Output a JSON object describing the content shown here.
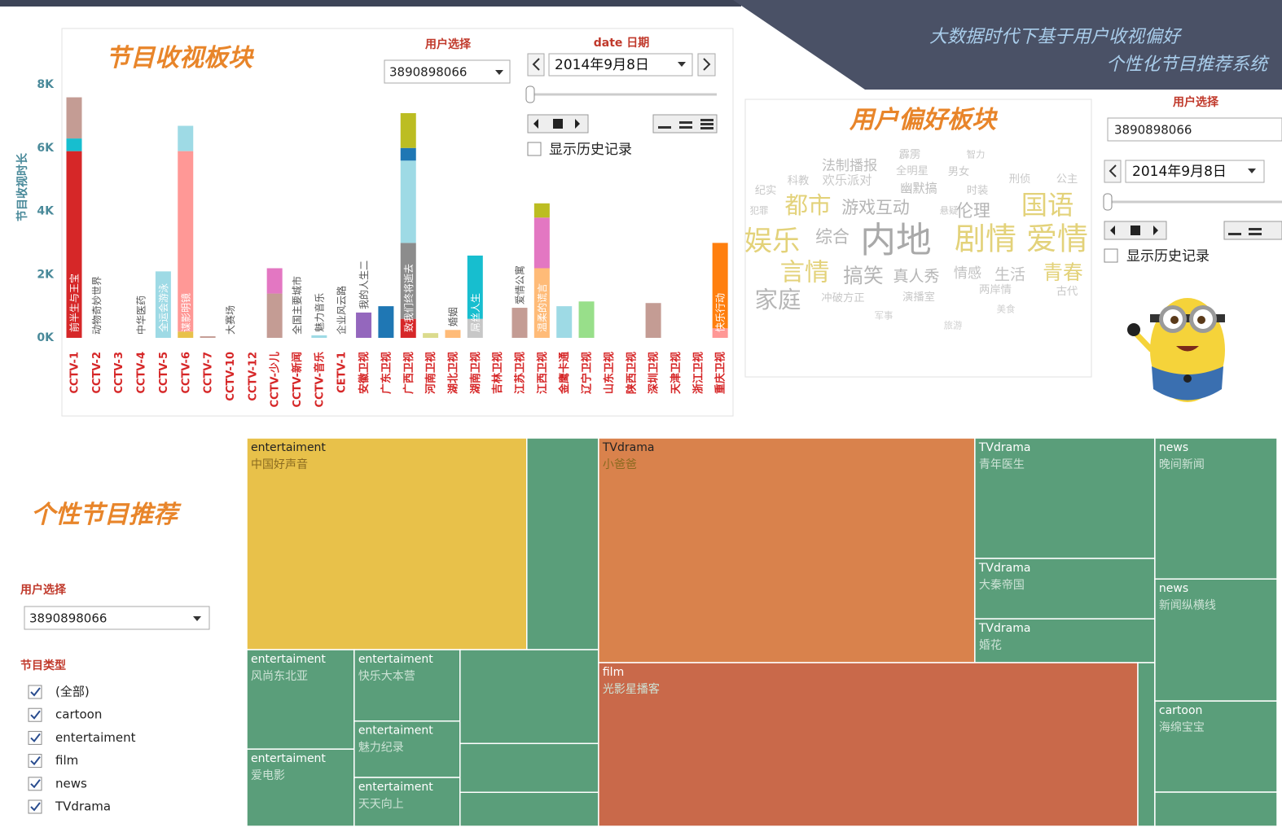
{
  "banner": {
    "line1": "大数据时代下基于用户收视偏好",
    "line2": "个性化节目推荐系统"
  },
  "chart_data": {
    "type": "bar",
    "stacked": true,
    "title": "节目收视板块",
    "y_label": "节目收视时长",
    "categories": [
      "CCTV-1",
      "CCTV-2",
      "CCTV-3",
      "CCTV-4",
      "CCTV-5",
      "CCTV-6",
      "CCTV-7",
      "CCTV-10",
      "CCTV-12",
      "CCTV-少儿",
      "CCTV-新闻",
      "CCTV-音乐",
      "CETV-1",
      "安徽卫视",
      "广东卫视",
      "广西卫视",
      "河南卫视",
      "湖北卫视",
      "湖南卫视",
      "吉林卫视",
      "江苏卫视",
      "江西卫视",
      "金鹰卡通",
      "辽宁卫视",
      "山东卫视",
      "陕西卫视",
      "深圳卫视",
      "天津卫视",
      "浙江卫视",
      "重庆卫视"
    ],
    "segments": [
      [
        {
          "value": 5900,
          "color": "#d62728"
        },
        {
          "value": 400,
          "color": "#17becf"
        },
        {
          "value": 1300,
          "color": "#c49c94"
        }
      ],
      [],
      [],
      [],
      [
        {
          "value": 2100,
          "color": "#9edae5"
        }
      ],
      [
        {
          "value": 200,
          "color": "#e8c14a"
        },
        {
          "value": 5700,
          "color": "#ff9896"
        },
        {
          "value": 800,
          "color": "#9edae5"
        }
      ],
      [
        {
          "value": 50,
          "color": "#c49c94"
        }
      ],
      [],
      [],
      [
        {
          "value": 1400,
          "color": "#c49c94"
        },
        {
          "value": 800,
          "color": "#e377c2"
        }
      ],
      [],
      [
        {
          "value": 80,
          "color": "#9edae5"
        }
      ],
      [],
      [
        {
          "value": 800,
          "color": "#9467bd"
        }
      ],
      [
        {
          "value": 1000,
          "color": "#1f77b4"
        }
      ],
      [
        {
          "value": 600,
          "color": "#d62728"
        },
        {
          "value": 2400,
          "color": "#8c8c8c"
        },
        {
          "value": 2600,
          "color": "#9edae5"
        },
        {
          "value": 400,
          "color": "#1f77b4"
        },
        {
          "value": 1100,
          "color": "#bcbd22"
        }
      ],
      [
        {
          "value": 150,
          "color": "#dbdb8d"
        }
      ],
      [
        {
          "value": 250,
          "color": "#ffbb78"
        }
      ],
      [
        {
          "value": 600,
          "color": "#c7c7c7"
        },
        {
          "value": 2000,
          "color": "#17becf"
        }
      ],
      [],
      [
        {
          "value": 950,
          "color": "#c49c94"
        }
      ],
      [
        {
          "value": 2200,
          "color": "#ffbb78"
        },
        {
          "value": 1600,
          "color": "#e377c2"
        },
        {
          "value": 450,
          "color": "#bcbd22"
        }
      ],
      [
        {
          "value": 1000,
          "color": "#9edae5"
        }
      ],
      [
        {
          "value": 1150,
          "color": "#98df8a"
        }
      ],
      [],
      [],
      [
        {
          "value": 1100,
          "color": "#c49c94"
        }
      ],
      [],
      [],
      [
        {
          "value": 300,
          "color": "#ff9896"
        },
        {
          "value": 2700,
          "color": "#ff7f0e"
        }
      ]
    ],
    "bar_labels": [
      "前半生与王宝",
      "动物奇妙世界",
      null,
      "中华医药",
      "全运会游泳",
      "谍影明镜",
      null,
      "大赛场",
      null,
      null,
      "全国主要城市",
      "魅力音乐",
      "企业风云路",
      "我的人生二",
      null,
      "致我们终将逝去",
      null,
      "婚姻",
      "屌丝人生",
      null,
      "爱情公寓",
      "温柔的谎言",
      null,
      null,
      null,
      null,
      null,
      null,
      null,
      "快乐行动"
    ],
    "ylim": [
      0,
      8000
    ],
    "yticks": [
      {
        "value": 0,
        "label": "0K"
      },
      {
        "value": 2000,
        "label": "2K"
      },
      {
        "value": 4000,
        "label": "4K"
      },
      {
        "value": 6000,
        "label": "6K"
      },
      {
        "value": 8000,
        "label": "8K"
      }
    ],
    "grid": false
  },
  "bar_controls": {
    "user_label": "用户选择",
    "user": "3890898066",
    "date_label": "date 日期",
    "date": "2014年9月8日",
    "history": "显示历史记录"
  },
  "preference": {
    "title": "用户偏好板块",
    "user_label": "用户选择",
    "user": "3890898066",
    "date": "2014年9月8日",
    "history": "显示历史记录",
    "words": [
      {
        "text": "内地",
        "weight": 46,
        "color": "#a9a9a9"
      },
      {
        "text": "剧情",
        "weight": 40,
        "color": "#e3d27a"
      },
      {
        "text": "爱情",
        "weight": 40,
        "color": "#e3d27a"
      },
      {
        "text": "娱乐",
        "weight": 36,
        "color": "#e3d27a"
      },
      {
        "text": "国语",
        "weight": 34,
        "color": "#e3d27a"
      },
      {
        "text": "言情",
        "weight": 32,
        "color": "#e3d27a"
      },
      {
        "text": "都市",
        "weight": 30,
        "color": "#e3d27a"
      },
      {
        "text": "家庭",
        "weight": 30,
        "color": "#b5b5b5"
      },
      {
        "text": "综合",
        "weight": 22,
        "color": "#b5b5b5"
      },
      {
        "text": "搞笑",
        "weight": 26,
        "color": "#b5b5b5"
      },
      {
        "text": "青春",
        "weight": 26,
        "color": "#e3d27a"
      },
      {
        "text": "游戏互动",
        "weight": 22,
        "color": "#b5b5b5"
      },
      {
        "text": "伦理",
        "weight": 22,
        "color": "#b5b5b5"
      },
      {
        "text": "真人秀",
        "weight": 20,
        "color": "#b5b5b5"
      },
      {
        "text": "情感",
        "weight": 18,
        "color": "#c2c2c2"
      },
      {
        "text": "生活",
        "weight": 20,
        "color": "#c2c2c2"
      },
      {
        "text": "法制播报",
        "weight": 18,
        "color": "#bdbdbd"
      },
      {
        "text": "科教",
        "weight": 14,
        "color": "#c8c8c8"
      },
      {
        "text": "欢乐派对",
        "weight": 16,
        "color": "#c8c8c8"
      },
      {
        "text": "幽默搞",
        "weight": 16,
        "color": "#bdbdbd"
      },
      {
        "text": "时装",
        "weight": 14,
        "color": "#c8c8c8"
      },
      {
        "text": "全明星",
        "weight": 14,
        "color": "#c8c8c8"
      },
      {
        "text": "男女",
        "weight": 14,
        "color": "#c8c8c8"
      },
      {
        "text": "霹雳",
        "weight": 14,
        "color": "#c8c8c8"
      },
      {
        "text": "刑侦",
        "weight": 14,
        "color": "#c8c8c8"
      },
      {
        "text": "公主",
        "weight": 14,
        "color": "#c8c8c8"
      },
      {
        "text": "纪实",
        "weight": 14,
        "color": "#c8c8c8"
      },
      {
        "text": "冲破方正",
        "weight": 14,
        "color": "#c8c8c8"
      },
      {
        "text": "演播室",
        "weight": 14,
        "color": "#c8c8c8"
      },
      {
        "text": "两岸情",
        "weight": 14,
        "color": "#c8c8c8"
      },
      {
        "text": "古代",
        "weight": 14,
        "color": "#c8c8c8"
      },
      {
        "text": "犯罪",
        "weight": 12,
        "color": "#c8c8c8"
      },
      {
        "text": "悬疑",
        "weight": 12,
        "color": "#c8c8c8"
      },
      {
        "text": "智力",
        "weight": 12,
        "color": "#c8c8c8"
      },
      {
        "text": "军事",
        "weight": 12,
        "color": "#d0d0d0"
      },
      {
        "text": "旅游",
        "weight": 12,
        "color": "#d0d0d0"
      },
      {
        "text": "美食",
        "weight": 12,
        "color": "#d0d0d0"
      }
    ]
  },
  "recommend": {
    "title": "个性节目推荐",
    "user_label": "用户选择",
    "user": "3890898066",
    "type_label": "节目类型",
    "types": [
      "(全部)",
      "cartoon",
      "entertaiment",
      "film",
      "news",
      "TVdrama"
    ],
    "treemap": {
      "type": "treemap",
      "root": {
        "children": [
          {
            "children": [
              {
                "children": [
                  {
                    "category": "entertaiment",
                    "label": "中国好声音",
                    "value": 89.4,
                    "color": "#e8c14a"
                  },
                  {
                    "value": 22.9,
                    "color": "#5a9e7a"
                  }
                ]
              },
              {
                "children": [
                  {
                    "children": [
                      {
                        "category": "entertaiment",
                        "label": "风尚东北亚",
                        "value": 16.1,
                        "color": "#5a9e7a"
                      },
                      {
                        "category": "entertaiment",
                        "label": "爱电影",
                        "value": 12.5,
                        "color": "#5a9e7a"
                      }
                    ]
                  },
                  {
                    "children": [
                      {
                        "category": "entertaiment",
                        "label": "快乐大本营",
                        "value": 11.4,
                        "color": "#5a9e7a"
                      },
                      {
                        "category": "entertaiment",
                        "label": "魅力纪录",
                        "value": 9.0,
                        "color": "#5a9e7a"
                      },
                      {
                        "category": "entertaiment",
                        "label": "天天向上",
                        "value": 7.8,
                        "color": "#5a9e7a"
                      }
                    ]
                  },
                  {
                    "children": [
                      {
                        "value": 19.6,
                        "color": "#5a9e7a"
                      },
                      {
                        "value": 10.2,
                        "color": "#5a9e7a"
                      },
                      {
                        "value": 7.1,
                        "color": "#5a9e7a"
                      }
                    ]
                  }
                ]
              }
            ]
          },
          {
            "children": [
              {
                "children": [
                  {
                    "category": "TVdrama",
                    "label": "小爸爸",
                    "value": 127.5,
                    "color": "#d9824c"
                  },
                  {
                    "children": [
                      {
                        "category": "TVdrama",
                        "label": "青年医生",
                        "value": 32.7,
                        "color": "#5a9e7a"
                      },
                      {
                        "category": "TVdrama",
                        "label": "大秦帝国",
                        "value": 16.4,
                        "color": "#5a9e7a"
                      },
                      {
                        "category": "TVdrama",
                        "label": "婚花",
                        "value": 11.9,
                        "color": "#5a9e7a"
                      }
                    ]
                  }
                ]
              },
              {
                "children": [
                  {
                    "category": "film",
                    "label": "光影星播客",
                    "value": 133.1,
                    "color": "#c9694a"
                  },
                  {
                    "value": 4.2,
                    "color": "#5a9e7a"
                  }
                ]
              }
            ]
          },
          {
            "children": [
              {
                "category": "news",
                "label": "晚间新闻",
                "value": 26.0,
                "color": "#5a9e7a"
              },
              {
                "category": "news",
                "label": "新闻纵横线",
                "value": 22.5,
                "color": "#5a9e7a"
              },
              {
                "category": "cartoon",
                "label": "海绵宝宝",
                "value": 16.8,
                "color": "#5a9e7a"
              },
              {
                "value": 6.3,
                "color": "#5a9e7a"
              }
            ]
          }
        ]
      }
    }
  }
}
